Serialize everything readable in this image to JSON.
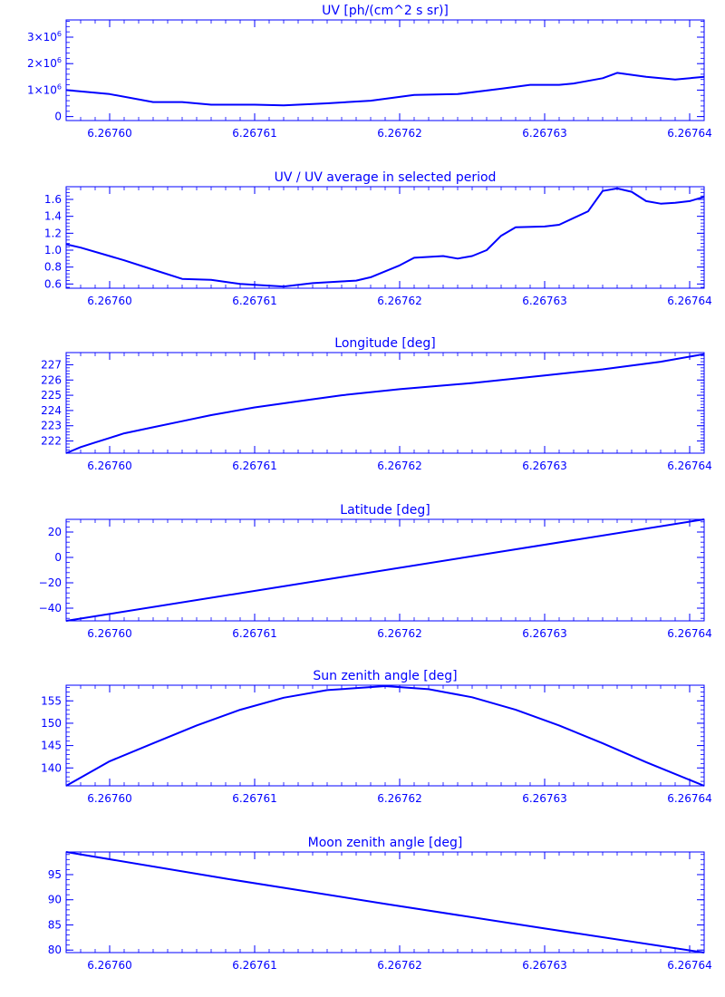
{
  "style": {
    "color": "#0000ff",
    "background": "#ffffff"
  },
  "x_tick_labels": [
    "6.26760",
    "6.26761",
    "6.26762",
    "6.26763",
    "6.26764"
  ],
  "chart_data": [
    {
      "type": "line",
      "title": "UV [ph/(cm^2 s sr)]",
      "xlabel": "",
      "ylabel": "",
      "x_domain": [
        6.267597,
        6.267641
      ],
      "xticks": [
        6.2676,
        6.26761,
        6.26762,
        6.26763,
        6.26764
      ],
      "ylim": [
        -150000,
        3650000
      ],
      "yticks": [
        0,
        1000000,
        2000000,
        3000000
      ],
      "ytick_labels": [
        {
          "m": "0",
          "e": ""
        },
        {
          "m": "1×10",
          "e": "6"
        },
        {
          "m": "2×10",
          "e": "6"
        },
        {
          "m": "3×10",
          "e": "6"
        }
      ],
      "series": [
        {
          "x": [
            6.267597,
            6.2676,
            6.267603,
            6.267605,
            6.267607,
            6.26761,
            6.267612,
            6.267615,
            6.267618,
            6.267621,
            6.267624,
            6.267627,
            6.267629,
            6.267631,
            6.267632,
            6.267634,
            6.267635,
            6.267637,
            6.267639,
            6.267641
          ],
          "y": [
            1000000,
            850000,
            550000,
            550000,
            450000,
            450000,
            420000,
            500000,
            600000,
            820000,
            850000,
            1050000,
            1200000,
            1200000,
            1250000,
            1450000,
            1650000,
            1500000,
            1400000,
            1500000
          ]
        }
      ]
    },
    {
      "type": "line",
      "title": "UV / UV average in selected period",
      "xlabel": "",
      "ylabel": "",
      "x_domain": [
        6.267597,
        6.267641
      ],
      "xticks": [
        6.2676,
        6.26761,
        6.26762,
        6.26763,
        6.26764
      ],
      "ylim": [
        0.55,
        1.75
      ],
      "yticks": [
        0.6,
        0.8,
        1.0,
        1.2,
        1.4,
        1.6
      ],
      "ytick_labels": [
        "0.6",
        "0.8",
        "1.0",
        "1.2",
        "1.4",
        "1.6"
      ],
      "series": [
        {
          "x": [
            6.267597,
            6.267598,
            6.2676,
            6.267601,
            6.267603,
            6.267605,
            6.267607,
            6.267609,
            6.26761,
            6.267612,
            6.267614,
            6.267616,
            6.267617,
            6.267618,
            6.26762,
            6.267621,
            6.267623,
            6.267624,
            6.267625,
            6.267626,
            6.267627,
            6.267628,
            6.26763,
            6.267631,
            6.267633,
            6.267634,
            6.267635,
            6.267636,
            6.267637,
            6.267638,
            6.267639,
            6.26764,
            6.267641
          ],
          "y": [
            1.07,
            1.03,
            0.93,
            0.88,
            0.77,
            0.66,
            0.65,
            0.6,
            0.59,
            0.57,
            0.61,
            0.63,
            0.64,
            0.68,
            0.82,
            0.91,
            0.93,
            0.9,
            0.93,
            1.0,
            1.17,
            1.27,
            1.28,
            1.3,
            1.46,
            1.7,
            1.73,
            1.69,
            1.58,
            1.55,
            1.56,
            1.58,
            1.63
          ]
        }
      ]
    },
    {
      "type": "line",
      "title": "Longitude [deg]",
      "xlabel": "",
      "ylabel": "",
      "x_domain": [
        6.267597,
        6.267641
      ],
      "xticks": [
        6.2676,
        6.26761,
        6.26762,
        6.26763,
        6.26764
      ],
      "ylim": [
        221.2,
        227.8
      ],
      "yticks": [
        222,
        223,
        224,
        225,
        226,
        227
      ],
      "ytick_labels": [
        "222",
        "223",
        "224",
        "225",
        "226",
        "227"
      ],
      "series": [
        {
          "x": [
            6.267597,
            6.267598,
            6.267599,
            6.2676,
            6.267601,
            6.267603,
            6.267605,
            6.267607,
            6.26761,
            6.267613,
            6.267616,
            6.26762,
            6.267625,
            6.26763,
            6.267634,
            6.267638,
            6.267641
          ],
          "y": [
            221.2,
            221.6,
            221.9,
            222.2,
            222.5,
            222.9,
            223.3,
            223.7,
            224.2,
            224.6,
            225.0,
            225.4,
            225.8,
            226.3,
            226.7,
            227.2,
            227.7
          ]
        }
      ]
    },
    {
      "type": "line",
      "title": "Latitude [deg]",
      "xlabel": "",
      "ylabel": "",
      "x_domain": [
        6.267597,
        6.267641
      ],
      "xticks": [
        6.2676,
        6.26761,
        6.26762,
        6.26763,
        6.26764
      ],
      "ylim": [
        -50,
        30
      ],
      "yticks": [
        -40,
        -20,
        0,
        20
      ],
      "ytick_labels": [
        "−40",
        "−20",
        "0",
        "20"
      ],
      "series": [
        {
          "x": [
            6.267597,
            6.267641
          ],
          "y": [
            -50,
            30
          ]
        }
      ]
    },
    {
      "type": "line",
      "title": "Sun zenith angle [deg]",
      "xlabel": "",
      "ylabel": "",
      "x_domain": [
        6.267597,
        6.267641
      ],
      "xticks": [
        6.2676,
        6.26761,
        6.26762,
        6.26763,
        6.26764
      ],
      "ylim": [
        136,
        158.5
      ],
      "yticks": [
        140,
        145,
        150,
        155
      ],
      "ytick_labels": [
        "140",
        "145",
        "150",
        "155"
      ],
      "series": [
        {
          "x": [
            6.267597,
            6.2676,
            6.267603,
            6.267606,
            6.267609,
            6.267612,
            6.267615,
            6.267619,
            6.267622,
            6.267625,
            6.267628,
            6.267631,
            6.267634,
            6.267637,
            6.267641
          ],
          "y": [
            136,
            141.5,
            145.5,
            149.5,
            153,
            155.7,
            157.4,
            158.3,
            157.6,
            155.8,
            153,
            149.5,
            145.5,
            141.3,
            136
          ]
        }
      ]
    },
    {
      "type": "line",
      "title": "Moon zenith angle [deg]",
      "xlabel": "",
      "ylabel": "",
      "x_domain": [
        6.267597,
        6.267641
      ],
      "xticks": [
        6.2676,
        6.26761,
        6.26762,
        6.26763,
        6.26764
      ],
      "ylim": [
        79.5,
        99.5
      ],
      "yticks": [
        80,
        85,
        90,
        95
      ],
      "ytick_labels": [
        "80",
        "85",
        "90",
        "95"
      ],
      "series": [
        {
          "x": [
            6.267597,
            6.267608,
            6.267619,
            6.26763,
            6.267641
          ],
          "y": [
            99.5,
            94.2,
            89.2,
            84.3,
            79.5
          ]
        }
      ]
    }
  ]
}
